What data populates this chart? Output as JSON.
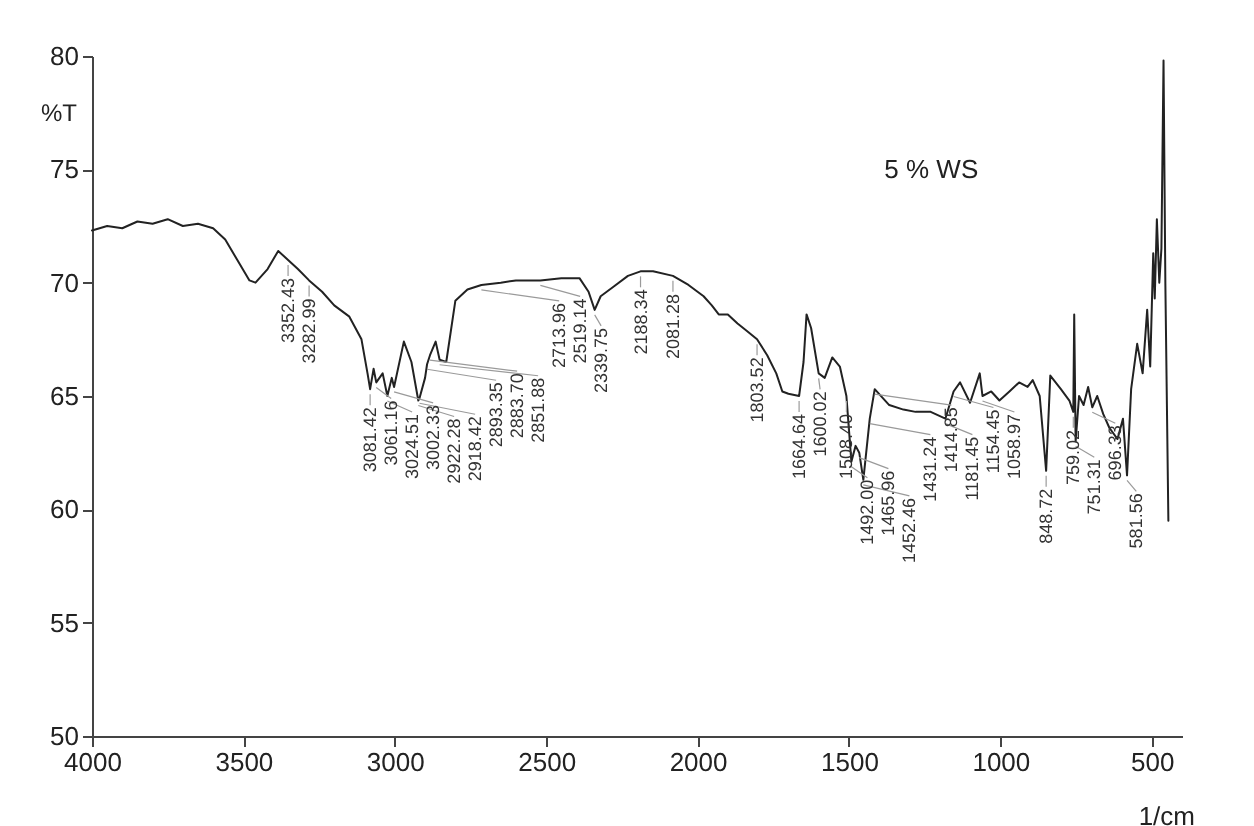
{
  "chart_data": {
    "type": "line",
    "xlabel": "1/cm",
    "ylabel": "%T",
    "annotations": [
      "5 % WS",
      {
        "text": "3352.43",
        "x": 3352.43,
        "y": 71.0
      },
      {
        "text": "3282.99",
        "x": 3282.99,
        "y": 70.1
      },
      {
        "text": "3081.42",
        "x": 3081.42,
        "y": 65.3
      },
      {
        "text": "3061.16",
        "x": 3061.16,
        "y": 65.6
      },
      {
        "text": "3024.51",
        "x": 3024.51,
        "y": 65.0
      },
      {
        "text": "3002.33",
        "x": 3002.33,
        "y": 65.4
      },
      {
        "text": "2922.28",
        "x": 2922.28,
        "y": 64.8
      },
      {
        "text": "2918.42",
        "x": 2918.42,
        "y": 64.9
      },
      {
        "text": "2893.35",
        "x": 2893.35,
        "y": 66.4
      },
      {
        "text": "2883.70",
        "x": 2883.7,
        "y": 66.8
      },
      {
        "text": "2851.88",
        "x": 2851.88,
        "y": 66.6
      },
      {
        "text": "2713.96",
        "x": 2713.96,
        "y": 69.9
      },
      {
        "text": "2519.14",
        "x": 2519.14,
        "y": 70.1
      },
      {
        "text": "2339.75",
        "x": 2339.75,
        "y": 68.8
      },
      {
        "text": "2188.34",
        "x": 2188.34,
        "y": 70.5
      },
      {
        "text": "2081.28",
        "x": 2081.28,
        "y": 70.3
      },
      {
        "text": "1803.52",
        "x": 1803.52,
        "y": 67.5
      },
      {
        "text": "1664.64",
        "x": 1664.64,
        "y": 65.0
      },
      {
        "text": "1600.02",
        "x": 1600.02,
        "y": 66.0
      },
      {
        "text": "1508.40",
        "x": 1508.4,
        "y": 65.0
      },
      {
        "text": "1492.00",
        "x": 1492.0,
        "y": 62.1
      },
      {
        "text": "1465.96",
        "x": 1465.96,
        "y": 62.5
      },
      {
        "text": "1452.46",
        "x": 1452.46,
        "y": 61.3
      },
      {
        "text": "1431.24",
        "x": 1431.24,
        "y": 64.0
      },
      {
        "text": "1414.85",
        "x": 1414.85,
        "y": 65.3
      },
      {
        "text": "1181.45",
        "x": 1181.45,
        "y": 64.0
      },
      {
        "text": "1154.45",
        "x": 1154.45,
        "y": 65.2
      },
      {
        "text": "1058.97",
        "x": 1058.97,
        "y": 65.0
      },
      {
        "text": "848.72",
        "x": 848.72,
        "y": 61.7
      },
      {
        "text": "759.02",
        "x": 759.02,
        "y": 64.3
      },
      {
        "text": "751.31",
        "x": 751.31,
        "y": 63.0
      },
      {
        "text": "696.33",
        "x": 696.33,
        "y": 64.5
      },
      {
        "text": "581.56",
        "x": 581.56,
        "y": 61.5
      }
    ],
    "x": [
      4000,
      3950,
      3900,
      3850,
      3800,
      3750,
      3700,
      3650,
      3600,
      3560,
      3520,
      3480,
      3460,
      3420,
      3385,
      3352.43,
      3320,
      3282.99,
      3240,
      3200,
      3150,
      3110,
      3090,
      3081.42,
      3070,
      3061.16,
      3040,
      3024.51,
      3010,
      3002.33,
      2970,
      2945,
      2922.28,
      2918.42,
      2900,
      2893.35,
      2883.7,
      2865,
      2851.88,
      2830,
      2800,
      2760,
      2713.96,
      2650,
      2600,
      2519.14,
      2450,
      2390,
      2360,
      2339.75,
      2320,
      2280,
      2230,
      2188.34,
      2147,
      2081.28,
      2030,
      1980,
      1953,
      1930,
      1900,
      1868,
      1840,
      1803.52,
      1770,
      1740,
      1720,
      1700,
      1664.64,
      1650,
      1640,
      1625,
      1600.02,
      1580,
      1555,
      1530,
      1508.4,
      1497,
      1492,
      1478,
      1465.96,
      1452.46,
      1431.24,
      1414.85,
      1367,
      1320,
      1280,
      1230,
      1181.45,
      1154.45,
      1133,
      1100,
      1068,
      1058.97,
      1030,
      1003,
      970,
      938,
      910,
      893,
      870,
      848.72,
      835,
      800,
      772,
      759.02,
      756,
      751.31,
      740,
      725,
      710,
      696.33,
      680,
      660,
      640,
      613,
      595,
      581.56,
      568,
      548,
      530,
      515,
      505,
      495,
      490,
      483,
      475,
      468,
      461,
      455,
      445
    ],
    "series": [
      {
        "color": "#222222",
        "values": [
          72.3,
          72.5,
          72.4,
          72.7,
          72.6,
          72.8,
          72.5,
          72.6,
          72.4,
          71.9,
          71.0,
          70.1,
          70.0,
          70.6,
          71.4,
          71.0,
          70.6,
          70.1,
          69.6,
          69.0,
          68.5,
          67.5,
          66.0,
          65.3,
          66.2,
          65.6,
          66.0,
          65.0,
          65.8,
          65.4,
          67.4,
          66.5,
          64.8,
          64.9,
          65.8,
          66.4,
          66.8,
          67.4,
          66.6,
          66.5,
          69.2,
          69.7,
          69.9,
          70.0,
          70.1,
          70.1,
          70.2,
          70.2,
          69.6,
          68.8,
          69.4,
          69.8,
          70.3,
          70.5,
          70.5,
          70.3,
          69.9,
          69.4,
          69.0,
          68.6,
          68.6,
          68.2,
          67.9,
          67.5,
          66.8,
          66.0,
          65.2,
          65.1,
          65.0,
          66.5,
          68.6,
          68.0,
          66.0,
          65.8,
          66.7,
          66.3,
          65.0,
          63.0,
          62.1,
          62.8,
          62.5,
          61.3,
          64.0,
          65.3,
          64.6,
          64.4,
          64.3,
          64.3,
          64.0,
          65.2,
          65.6,
          64.7,
          66.0,
          65.0,
          65.2,
          64.8,
          65.2,
          65.6,
          65.4,
          65.7,
          65.0,
          61.7,
          65.9,
          65.3,
          64.8,
          64.3,
          68.6,
          63.0,
          65.0,
          64.6,
          65.4,
          64.5,
          65.0,
          64.2,
          63.6,
          63.1,
          64.0,
          61.5,
          65.3,
          67.3,
          66.0,
          68.8,
          66.3,
          71.3,
          69.3,
          72.8,
          70.0,
          71.5,
          79.8,
          70.0,
          59.5
        ]
      }
    ],
    "xlim": [
      4000,
      400
    ],
    "ylim": [
      50,
      80
    ],
    "xticks": [
      4000,
      3500,
      3000,
      2500,
      2000,
      1500,
      1000,
      500
    ],
    "yticks": [
      50,
      55,
      60,
      65,
      70,
      75,
      80
    ],
    "grid": false,
    "marker": "none",
    "line_style": "solid"
  }
}
